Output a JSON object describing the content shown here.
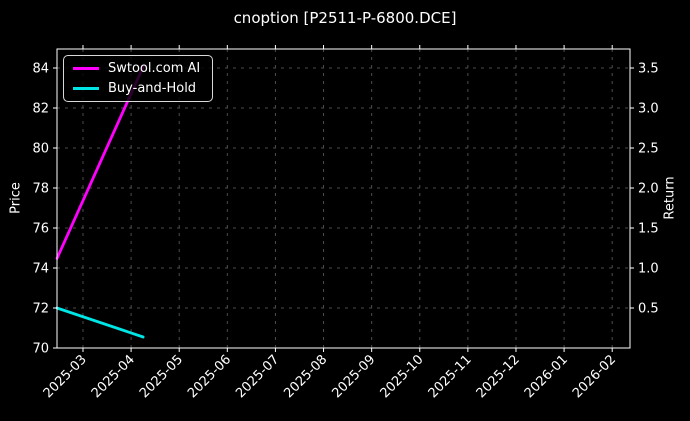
{
  "figure": {
    "background_color": "#000000",
    "text_color": "#ffffff",
    "spine_color": "#ffffff"
  },
  "chart_data": {
    "type": "line",
    "title": "cnoption [P2511-P-6800.DCE]",
    "grid": {
      "show": true,
      "color": "#4d4d4d",
      "style": "dashed"
    },
    "x_axis": {
      "tick_labels": [
        "2025-03",
        "2025-04",
        "2025-05",
        "2025-06",
        "2025-07",
        "2025-08",
        "2025-09",
        "2025-10",
        "2025-11",
        "2025-12",
        "2026-01",
        "2026-02"
      ],
      "tick_rotation_deg": 45,
      "range": [
        -0.54,
        11.37
      ],
      "range_note": "month index units, 0 = 2025-03 tick, 11 = 2026-02 tick"
    },
    "y_axis_left": {
      "label": "Price",
      "ticks": [
        70,
        72,
        74,
        76,
        78,
        80,
        82,
        84
      ],
      "range": [
        70,
        84.95
      ]
    },
    "y_axis_right": {
      "label": "Return",
      "ticks": [
        0.5,
        1.0,
        1.5,
        2.0,
        2.5,
        3.0,
        3.5
      ],
      "range": [
        0,
        3.7375
      ]
    },
    "legend": {
      "position": "upper-left",
      "entries": [
        {
          "label": "Swtool.com AI",
          "color": "#ff00ff"
        },
        {
          "label": "Buy-and-Hold",
          "color": "#00e5e5"
        }
      ]
    },
    "series": [
      {
        "name": "Swtool.com AI",
        "color": "#ff00ff",
        "axis": "right",
        "points": [
          {
            "x": -0.54,
            "date": "2025-02-14",
            "y": 1.12
          },
          {
            "x": 1.27,
            "date": "2025-04-08",
            "y": 3.54
          }
        ]
      },
      {
        "name": "Buy-and-Hold",
        "color": "#00e5e5",
        "axis": "left",
        "points": [
          {
            "x": -0.54,
            "date": "2025-02-14",
            "y": 72.0
          },
          {
            "x": 1.25,
            "date": "2025-04-08",
            "y": 70.55
          }
        ]
      }
    ]
  }
}
